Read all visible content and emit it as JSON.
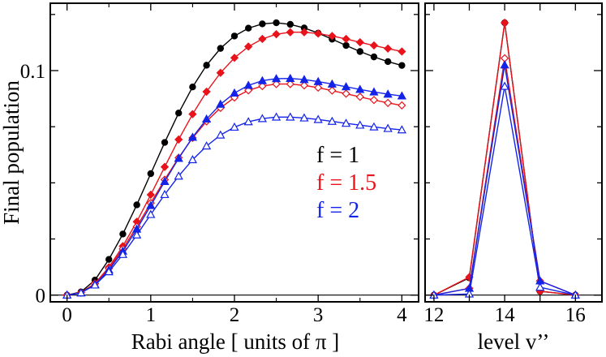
{
  "chart_data": [
    {
      "type": "line",
      "xlabel": "Rabi angle [ units of π ]",
      "ylabel": "Final population",
      "xlim": [
        -0.2,
        4.2
      ],
      "ylim": [
        -0.003,
        0.13
      ],
      "xticks": [
        0,
        1,
        2,
        3,
        4
      ],
      "xtick_labels": [
        "0",
        "1",
        "2",
        "3",
        "4"
      ],
      "yticks": [
        0,
        0.1
      ],
      "ytick_labels": [
        "0",
        "0.1"
      ],
      "legend": {
        "position": "middle-right",
        "entries": [
          {
            "label": "f = 1",
            "color": "#000000"
          },
          {
            "label": "f = 1.5",
            "color": "#e8131b"
          },
          {
            "label": "f = 2",
            "color": "#1323e8"
          }
        ]
      },
      "series": [
        {
          "name": "f = 1 (filled circle)",
          "color": "#000000",
          "marker": "circle",
          "filled": true,
          "x": [
            0,
            0.1667,
            0.3333,
            0.5,
            0.6667,
            0.8333,
            1.0,
            1.1667,
            1.3333,
            1.5,
            1.6667,
            1.8333,
            2.0,
            2.1667,
            2.3333,
            2.5,
            2.6667,
            2.8333,
            3.0,
            3.1667,
            3.3333,
            3.5,
            3.6667,
            3.8333,
            4.0
          ],
          "y": [
            0,
            0.0014,
            0.0067,
            0.0159,
            0.0272,
            0.0402,
            0.0541,
            0.068,
            0.0811,
            0.0927,
            0.1024,
            0.1099,
            0.1154,
            0.1189,
            0.1208,
            0.1213,
            0.1206,
            0.119,
            0.1167,
            0.114,
            0.1112,
            0.1085,
            0.1061,
            0.104,
            0.1023
          ]
        },
        {
          "name": "f = 1.5 (filled diamond)",
          "color": "#e8131b",
          "marker": "diamond",
          "filled": true,
          "x": [
            0,
            0.1667,
            0.3333,
            0.5,
            0.6667,
            0.8333,
            1.0,
            1.1667,
            1.3333,
            1.5,
            1.6667,
            1.8333,
            2.0,
            2.1667,
            2.3333,
            2.5,
            2.6667,
            2.8333,
            3.0,
            3.1667,
            3.3333,
            3.5,
            3.6667,
            3.8333,
            4.0
          ],
          "y": [
            0,
            0.0011,
            0.0052,
            0.0124,
            0.0218,
            0.0327,
            0.0447,
            0.0571,
            0.0693,
            0.0806,
            0.0906,
            0.099,
            0.1057,
            0.1107,
            0.1141,
            0.1162,
            0.1171,
            0.1171,
            0.1165,
            0.1154,
            0.1141,
            0.1126,
            0.1112,
            0.1098,
            0.1085
          ]
        },
        {
          "name": "f = 1.5 (open diamond)",
          "color": "#e8131b",
          "marker": "diamond",
          "filled": false,
          "x": [
            0,
            0.1667,
            0.3333,
            0.5,
            0.6667,
            0.8333,
            1.0,
            1.1667,
            1.3333,
            1.5,
            1.6667,
            1.8333,
            2.0,
            2.1667,
            2.3333,
            2.5,
            2.6667,
            2.8333,
            3.0,
            3.1667,
            3.3333,
            3.5,
            3.6667,
            3.8333,
            4.0
          ],
          "y": [
            0,
            0.0011,
            0.0051,
            0.0119,
            0.0206,
            0.0305,
            0.041,
            0.0514,
            0.0612,
            0.07,
            0.0774,
            0.0834,
            0.088,
            0.0912,
            0.0931,
            0.094,
            0.094,
            0.0934,
            0.0924,
            0.0911,
            0.0897,
            0.0883,
            0.0869,
            0.0856,
            0.0845
          ]
        },
        {
          "name": "f = 2 (filled triangle)",
          "color": "#1323e8",
          "marker": "triangle",
          "filled": true,
          "x": [
            0,
            0.1667,
            0.3333,
            0.5,
            0.6667,
            0.8333,
            1.0,
            1.1667,
            1.3333,
            1.5,
            1.6667,
            1.8333,
            2.0,
            2.1667,
            2.3333,
            2.5,
            2.6667,
            2.8333,
            3.0,
            3.1667,
            3.3333,
            3.5,
            3.6667,
            3.8333,
            4.0
          ],
          "y": [
            0,
            0.001,
            0.0047,
            0.0112,
            0.0196,
            0.0294,
            0.0399,
            0.0506,
            0.0609,
            0.0703,
            0.0784,
            0.085,
            0.09,
            0.0934,
            0.0955,
            0.0964,
            0.0965,
            0.096,
            0.0951,
            0.094,
            0.0928,
            0.0916,
            0.0905,
            0.0895,
            0.0887
          ]
        },
        {
          "name": "f = 2 (open triangle)",
          "color": "#1323e8",
          "marker": "triangle",
          "filled": false,
          "x": [
            0,
            0.1667,
            0.3333,
            0.5,
            0.6667,
            0.8333,
            1.0,
            1.1667,
            1.3333,
            1.5,
            1.6667,
            1.8333,
            2.0,
            2.1667,
            2.3333,
            2.5,
            2.6667,
            2.8333,
            3.0,
            3.1667,
            3.3333,
            3.5,
            3.6667,
            3.8333,
            4.0
          ],
          "y": [
            0,
            0.001,
            0.0045,
            0.0104,
            0.0181,
            0.0268,
            0.0359,
            0.0448,
            0.053,
            0.0603,
            0.0664,
            0.0713,
            0.0748,
            0.0772,
            0.0786,
            0.0793,
            0.0793,
            0.0789,
            0.0782,
            0.0774,
            0.0765,
            0.0757,
            0.0749,
            0.0742,
            0.0736
          ]
        }
      ]
    },
    {
      "type": "line",
      "xlabel": "level v’’",
      "ylabel": "",
      "xlim": [
        11.75,
        16.75
      ],
      "ylim": [
        -0.003,
        0.13
      ],
      "xticks": [
        12,
        13,
        14,
        15,
        16
      ],
      "xtick_labels": [
        "12",
        "",
        "14",
        "",
        "16"
      ],
      "series": [
        {
          "name": "black filled circle",
          "color": "#000000",
          "marker": "circle",
          "filled": true,
          "x": [
            12,
            13,
            14,
            15,
            16
          ],
          "y": [
            0,
            0.0077,
            0.1213,
            0.0017,
            0
          ]
        },
        {
          "name": "red filled diamond",
          "color": "#e8131b",
          "marker": "diamond",
          "filled": true,
          "x": [
            12,
            13,
            14,
            15,
            16
          ],
          "y": [
            0,
            0.008,
            0.1213,
            0.0017,
            0
          ]
        },
        {
          "name": "red open diamond",
          "color": "#e8131b",
          "marker": "diamond",
          "filled": false,
          "x": [
            12,
            13,
            14,
            15,
            16
          ],
          "y": [
            0,
            0.003,
            0.1055,
            0.0063,
            0
          ]
        },
        {
          "name": "blue filled triangle",
          "color": "#1323e8",
          "marker": "triangle",
          "filled": true,
          "x": [
            12,
            13,
            14,
            15,
            16
          ],
          "y": [
            0,
            0.003,
            0.1025,
            0.0063,
            0
          ]
        },
        {
          "name": "blue open triangle",
          "color": "#1323e8",
          "marker": "triangle",
          "filled": false,
          "x": [
            12,
            13,
            14,
            15,
            16
          ],
          "y": [
            0,
            0.0005,
            0.093,
            0.0035,
            0
          ]
        }
      ]
    }
  ]
}
